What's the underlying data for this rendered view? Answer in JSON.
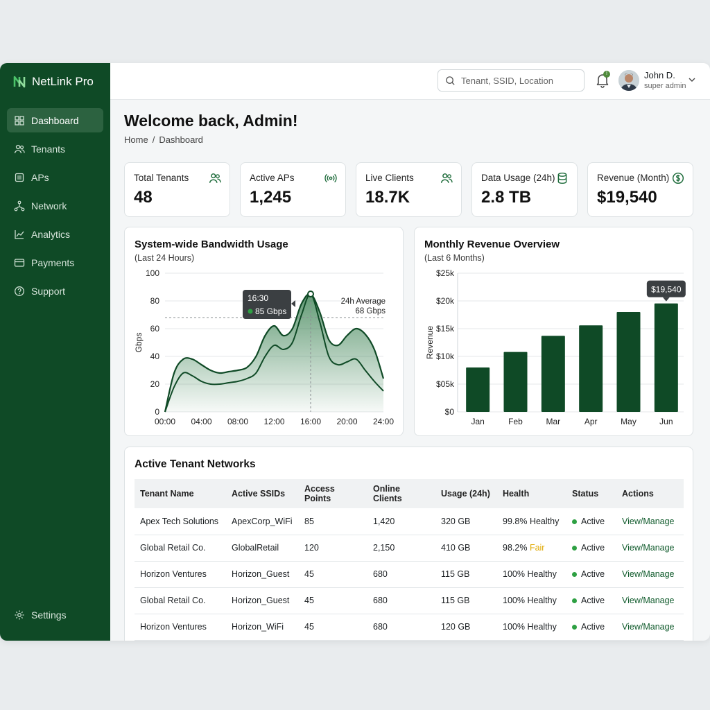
{
  "brand": {
    "name": "NetLink Pro"
  },
  "sidebar": {
    "items": [
      {
        "label": "Dashboard",
        "icon": "dashboard-icon",
        "active": true
      },
      {
        "label": "Tenants",
        "icon": "users-icon"
      },
      {
        "label": "APs",
        "icon": "ap-icon"
      },
      {
        "label": "Network",
        "icon": "network-icon"
      },
      {
        "label": "Analytics",
        "icon": "analytics-icon"
      },
      {
        "label": "Payments",
        "icon": "card-icon"
      },
      {
        "label": "Support",
        "icon": "help-icon"
      }
    ],
    "settings_label": "Settings"
  },
  "topbar": {
    "search_placeholder": "Tenant, SSID, Location",
    "notification_count": "!",
    "user_name": "John D.",
    "user_role": "super admin"
  },
  "page": {
    "welcome": "Welcome back, Admin!",
    "breadcrumb_home": "Home",
    "breadcrumb_sep": "/",
    "breadcrumb_current": "Dashboard"
  },
  "stats": [
    {
      "label": "Total Tenants",
      "value": "48",
      "icon": "users-icon"
    },
    {
      "label": "Active APs",
      "value": "1,245",
      "icon": "wireless-icon"
    },
    {
      "label": "Live Clients",
      "value": "18.7K",
      "icon": "users-icon"
    },
    {
      "label": "Data Usage (24h)",
      "value": "2.8 TB",
      "icon": "database-icon"
    },
    {
      "label": "Revenue (Month)",
      "value": "$19,540",
      "icon": "dollar-icon"
    }
  ],
  "colors": {
    "sidebar": "#0f4a26",
    "accent": "#0f4a26",
    "active": "#2ea043",
    "fair": "#e0a800"
  },
  "chart_data": [
    {
      "type": "area",
      "title": "System-wide Bandwidth Usage",
      "subtitle": "(Last 24 Hours)",
      "ylabel": "Gbps",
      "xlabel": "",
      "ylim": [
        0,
        100
      ],
      "yticks": [
        "0",
        "20",
        "40",
        "60",
        "80",
        "100"
      ],
      "xticks": [
        "00:00",
        "04:00",
        "08:00",
        "12:00",
        "16:00",
        "20:00",
        "24:00"
      ],
      "x": [
        0,
        1,
        2,
        3,
        4,
        5,
        6,
        7,
        8,
        9,
        10,
        11,
        12,
        13,
        14,
        15,
        16,
        17,
        18,
        19,
        20,
        21,
        22,
        23,
        24
      ],
      "series": [
        {
          "values": [
            0,
            28,
            38,
            38,
            34,
            30,
            28,
            29,
            30,
            32,
            40,
            55,
            62,
            55,
            60,
            78,
            85,
            72,
            52,
            48,
            55,
            60,
            56,
            45,
            24
          ]
        },
        {
          "values": [
            0,
            18,
            28,
            26,
            22,
            20,
            20,
            21,
            22,
            24,
            28,
            40,
            48,
            45,
            50,
            70,
            85,
            65,
            40,
            34,
            36,
            38,
            30,
            22,
            15
          ]
        }
      ],
      "average_label": "24h Average",
      "average_value_label": "68 Gbps",
      "average": 68,
      "tooltip_time": "16:30",
      "tooltip_value": "85 Gbps"
    },
    {
      "type": "bar",
      "title": "Monthly Revenue Overview",
      "subtitle": "(Last 6 Months)",
      "ylabel": "Revenue",
      "xlabel": "",
      "ylim": [
        0,
        25000
      ],
      "yticks": [
        "$0",
        "$05k",
        "$10k",
        "$15k",
        "$20k",
        "$25k"
      ],
      "categories": [
        "Jan",
        "Feb",
        "Mar",
        "Apr",
        "May",
        "Jun"
      ],
      "values": [
        8000,
        10800,
        13700,
        15600,
        18000,
        19540
      ],
      "tooltip_value": "$19,540"
    }
  ],
  "table": {
    "title": "Active Tenant Networks",
    "columns": [
      "Tenant Name",
      "Active SSIDs",
      "Access Points",
      "Online Clients",
      "Usage (24h)",
      "Health",
      "Status",
      "Actions"
    ],
    "rows": [
      {
        "name": "Apex Tech Solutions",
        "ssid": "ApexCorp_WiFi",
        "aps": "85",
        "clients": "1,420",
        "usage": "320 GB",
        "health_value": "99.8%",
        "health_label": "Healthy",
        "health_fair": false,
        "status": "Active",
        "action": "View/Manage"
      },
      {
        "name": "Global Retail Co.",
        "ssid": "GlobalRetail",
        "aps": "120",
        "clients": "2,150",
        "usage": "410 GB",
        "health_value": "98.2%",
        "health_label": "Fair",
        "health_fair": true,
        "status": "Active",
        "action": "View/Manage"
      },
      {
        "name": "Horizon Ventures",
        "ssid": "Horizon_Guest",
        "aps": "45",
        "clients": "680",
        "usage": "115 GB",
        "health_value": "100%",
        "health_label": "Healthy",
        "health_fair": false,
        "status": "Active",
        "action": "View/Manage"
      },
      {
        "name": "Global Retail Co.",
        "ssid": "Horizon_Guest",
        "aps": "45",
        "clients": "680",
        "usage": "115 GB",
        "health_value": "100%",
        "health_label": "Healthy",
        "health_fair": false,
        "status": "Active",
        "action": "View/Manage"
      },
      {
        "name": "Horizon Ventures",
        "ssid": "Horizon_WiFi",
        "aps": "45",
        "clients": "680",
        "usage": "120 GB",
        "health_value": "100%",
        "health_label": "Healthy",
        "health_fair": false,
        "status": "Active",
        "action": "View/Manage"
      }
    ]
  }
}
